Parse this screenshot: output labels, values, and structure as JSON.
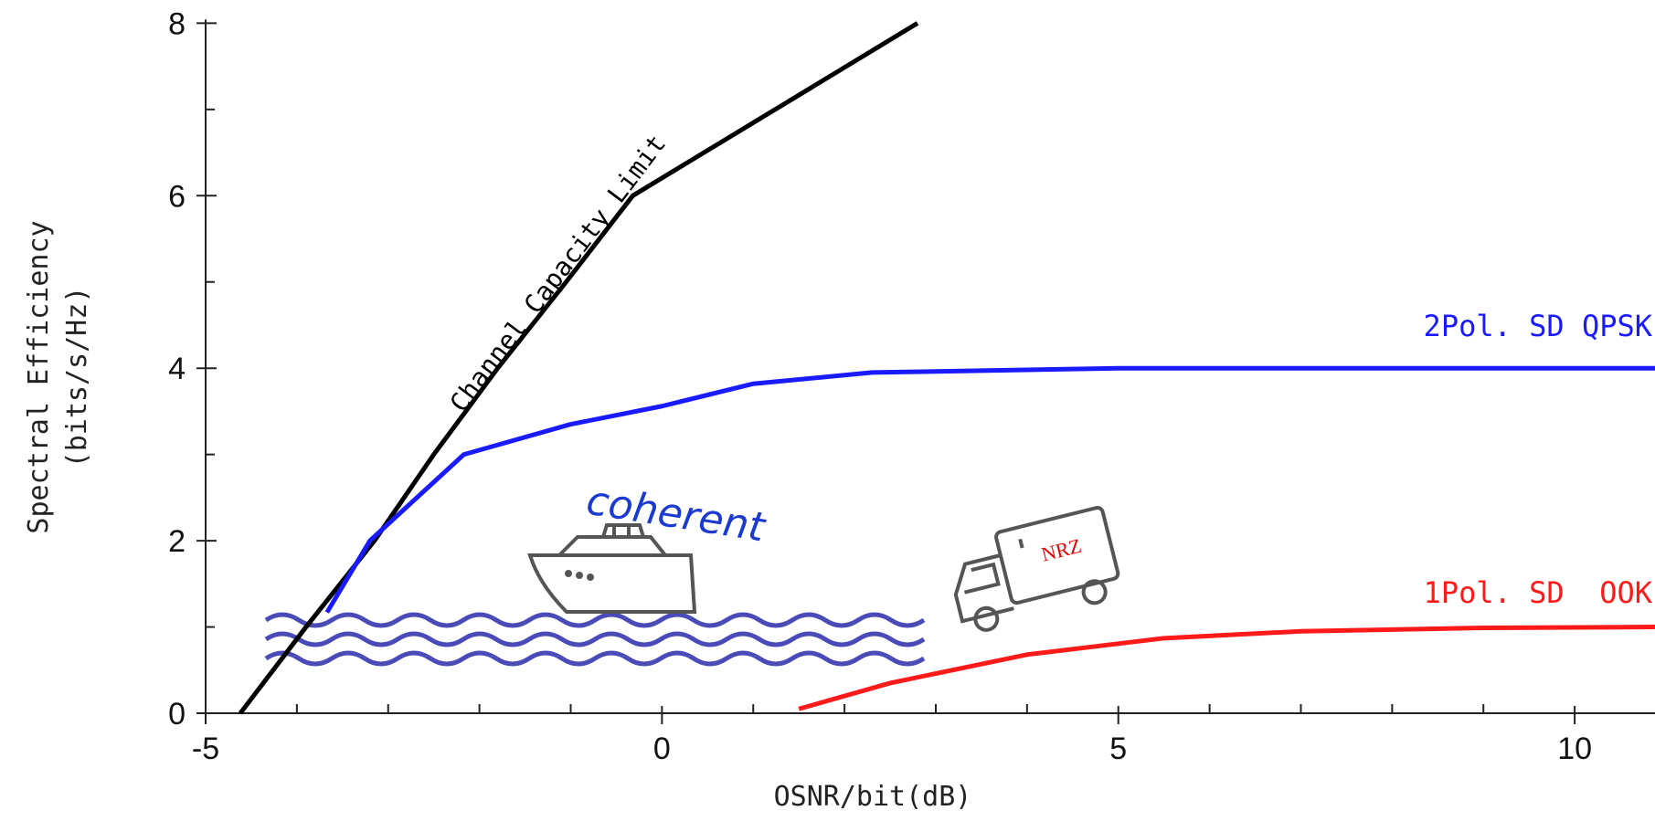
{
  "chart_data": {
    "type": "line",
    "xlabel": "OSNR/bit(dB)",
    "ylabel": [
      "Spectral Efficiency",
      "(bits/s/Hz)"
    ],
    "xlim": [
      -5,
      10.88
    ],
    "ylim": [
      0,
      8
    ],
    "xticks": [
      -5,
      0,
      5,
      10
    ],
    "yticks": [
      0,
      2,
      4,
      6,
      8
    ],
    "x_minor_ticks": [
      -4,
      -3,
      -2,
      -1,
      1,
      2,
      3,
      4,
      6,
      7,
      8,
      9
    ],
    "y_minor_ticks": [
      1,
      3,
      5,
      7
    ],
    "series": [
      {
        "name": "Channel Capacity Limit",
        "color": "#000000",
        "x": [
          -4.62,
          -3.9,
          -3.15,
          -2.5,
          -1.8,
          -1.05,
          -0.32,
          1.24,
          2.8
        ],
        "values": [
          0,
          1,
          2,
          3,
          4,
          5,
          6,
          7,
          8
        ]
      },
      {
        "name": "2Pol. SD QPSK",
        "color": "#1a1aff",
        "x": [
          -3.67,
          -3.2,
          -2.17,
          -1,
          0,
          1,
          2.3,
          5,
          10.88
        ],
        "values": [
          1.17,
          2,
          3,
          3.35,
          3.56,
          3.82,
          3.95,
          4.0,
          4.0
        ]
      },
      {
        "name": "1Pol. SD  OOK",
        "color": "#ff1a1a",
        "x": [
          1.5,
          2.5,
          4,
          5.5,
          7,
          9,
          10.88
        ],
        "values": [
          0.05,
          0.35,
          0.68,
          0.87,
          0.95,
          0.99,
          1.0
        ]
      }
    ],
    "annotations": [
      "coherent",
      "NRZ"
    ]
  }
}
